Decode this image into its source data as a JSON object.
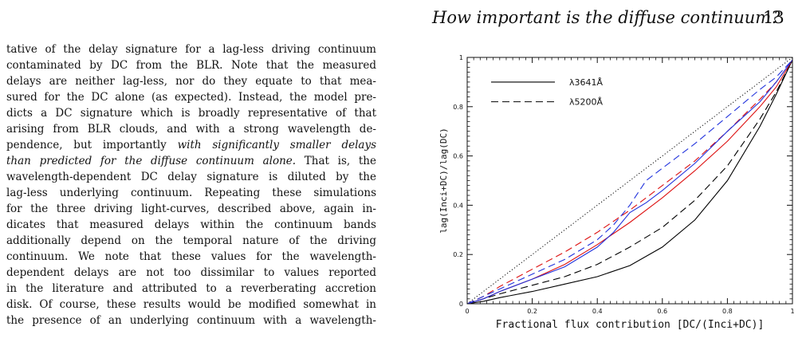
{
  "header": {
    "running_title": "How important is the diffuse continuum?",
    "page_number": "13"
  },
  "body": {
    "lines": [
      "tative of the delay signature for a lag-less driving continuum",
      "contaminated by DC from the BLR. Note that the measured",
      "delays are neither lag-less, nor do they equate to that mea-",
      "sured for the DC alone (as expected). Instead, the model pre-",
      "dicts a DC signature which is broadly representative of that",
      "arising from BLR clouds, and with a strong wavelength de-",
      "pendence, but importantly ",
      "than predicted for the diffuse continuum alone.",
      "wavelength-dependent DC delay signature is diluted by the",
      "lag-less underlying continuum. Repeating these simulations",
      "for the three driving light-curves, described above, again in-",
      "dicates that measured delays within the continuum bands",
      "additionally depend on the temporal nature of the driving",
      "continuum. We note that these values for the wavelength-",
      "dependent delays are not too dissimilar to values reported",
      "in the literature and attributed to a reverberating accretion",
      "disk. Of course, these results would be modified somewhat in",
      "the presence of an underlying continuum with a wavelength-"
    ],
    "italic_1": "with significantly smaller delays",
    "after_italic_2": " That is, the"
  },
  "chart_data": {
    "type": "line",
    "title": "",
    "xlabel": "Fractional flux contribution [DC/(Inci+DC)]",
    "ylabel": "lag(Inci+DC)/lag(DC)",
    "xlim": [
      0,
      1
    ],
    "ylim": [
      0,
      1
    ],
    "xticks": [
      "0",
      "0.2",
      "0.4",
      "0.6",
      "0.8",
      "1"
    ],
    "yticks": [
      "0",
      "0.2",
      "0.4",
      "0.6",
      "0.8",
      "1"
    ],
    "legend_position": "upper-left",
    "legend": [
      {
        "label": "λ3641Å",
        "style": "solid"
      },
      {
        "label": "λ5200Å",
        "style": "dashed"
      }
    ],
    "series": [
      {
        "style": "dotted",
        "color": "#000000",
        "x": [
          0,
          1
        ],
        "y": [
          0,
          1
        ]
      },
      {
        "style": "solid",
        "color": "#000000",
        "x": [
          0,
          0.05,
          0.1,
          0.2,
          0.3,
          0.4,
          0.5,
          0.6,
          0.7,
          0.8,
          0.9,
          0.95,
          1.0
        ],
        "y": [
          0,
          0.01,
          0.025,
          0.05,
          0.08,
          0.11,
          0.155,
          0.23,
          0.34,
          0.5,
          0.72,
          0.85,
          0.99
        ]
      },
      {
        "style": "dashed",
        "color": "#000000",
        "x": [
          0,
          0.05,
          0.1,
          0.2,
          0.3,
          0.4,
          0.5,
          0.6,
          0.7,
          0.8,
          0.9,
          0.95,
          1.0
        ],
        "y": [
          0,
          0.02,
          0.04,
          0.075,
          0.11,
          0.16,
          0.23,
          0.31,
          0.42,
          0.56,
          0.75,
          0.86,
          0.99
        ]
      },
      {
        "style": "solid",
        "color": "#dd1111",
        "x": [
          0,
          0.05,
          0.1,
          0.2,
          0.3,
          0.4,
          0.5,
          0.6,
          0.7,
          0.8,
          0.9,
          0.95,
          1.0
        ],
        "y": [
          0,
          0.02,
          0.05,
          0.1,
          0.16,
          0.24,
          0.33,
          0.43,
          0.54,
          0.66,
          0.8,
          0.88,
          0.99
        ]
      },
      {
        "style": "dashed",
        "color": "#dd1111",
        "x": [
          0,
          0.05,
          0.1,
          0.2,
          0.3,
          0.4,
          0.5,
          0.6,
          0.7,
          0.8,
          0.9,
          0.95,
          1.0
        ],
        "y": [
          0,
          0.03,
          0.07,
          0.14,
          0.21,
          0.29,
          0.38,
          0.48,
          0.58,
          0.7,
          0.83,
          0.9,
          0.99
        ]
      },
      {
        "style": "solid",
        "color": "#2233dd",
        "x": [
          0,
          0.05,
          0.1,
          0.2,
          0.3,
          0.4,
          0.45,
          0.5,
          0.55,
          0.6,
          0.7,
          0.8,
          0.9,
          0.95,
          1.0
        ],
        "y": [
          0,
          0.02,
          0.05,
          0.1,
          0.15,
          0.23,
          0.29,
          0.37,
          0.41,
          0.46,
          0.57,
          0.7,
          0.82,
          0.9,
          0.99
        ]
      },
      {
        "style": "dashed",
        "color": "#2233dd",
        "x": [
          0,
          0.05,
          0.1,
          0.2,
          0.3,
          0.4,
          0.45,
          0.5,
          0.55,
          0.6,
          0.7,
          0.8,
          0.9,
          0.95,
          1.0
        ],
        "y": [
          0,
          0.03,
          0.06,
          0.12,
          0.18,
          0.26,
          0.32,
          0.4,
          0.5,
          0.55,
          0.65,
          0.76,
          0.87,
          0.92,
          0.99
        ]
      }
    ]
  }
}
